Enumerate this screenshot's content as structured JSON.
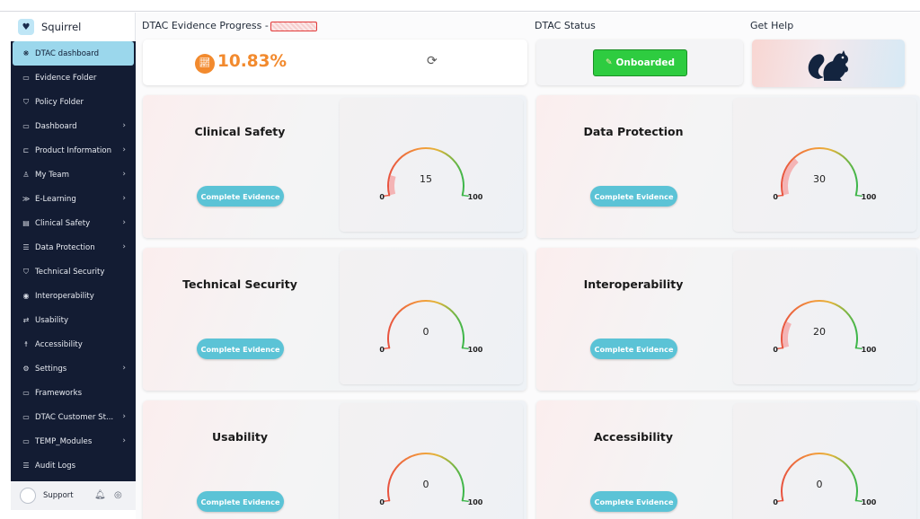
{
  "app": {
    "name": "Squirrel",
    "logo_icon": "heart-icon"
  },
  "sidebar": {
    "items": [
      {
        "label": "DTAC dashboard",
        "icon": "dashboard-icon",
        "active": true,
        "chevron": false
      },
      {
        "label": "Evidence Folder",
        "icon": "folder-icon",
        "active": false,
        "chevron": false
      },
      {
        "label": "Policy Folder",
        "icon": "shield-icon",
        "active": false,
        "chevron": false
      },
      {
        "label": "Dashboard",
        "icon": "monitor-icon",
        "active": false,
        "chevron": true
      },
      {
        "label": "Product Information",
        "icon": "cart-icon",
        "active": false,
        "chevron": true
      },
      {
        "label": "My Team",
        "icon": "team-icon",
        "active": false,
        "chevron": true
      },
      {
        "label": "E-Learning",
        "icon": "learning-icon",
        "active": false,
        "chevron": true
      },
      {
        "label": "Clinical Safety",
        "icon": "clipboard-icon",
        "active": false,
        "chevron": true
      },
      {
        "label": "Data Protection",
        "icon": "database-icon",
        "active": false,
        "chevron": true
      },
      {
        "label": "Technical Security",
        "icon": "shield-icon",
        "active": false,
        "chevron": false
      },
      {
        "label": "Interoperability",
        "icon": "globe-icon",
        "active": false,
        "chevron": false
      },
      {
        "label": "Usability",
        "icon": "loop-icon",
        "active": false,
        "chevron": false
      },
      {
        "label": "Accessibility",
        "icon": "person-icon",
        "active": false,
        "chevron": false
      },
      {
        "label": "Settings",
        "icon": "gear-icon",
        "active": false,
        "chevron": true
      },
      {
        "label": "Frameworks",
        "icon": "monitor-icon",
        "active": false,
        "chevron": false
      },
      {
        "label": "DTAC Customer St...",
        "icon": "monitor-icon",
        "active": false,
        "chevron": true
      },
      {
        "label": "TEMP_Modules",
        "icon": "monitor-icon",
        "active": false,
        "chevron": true
      },
      {
        "label": "Audit Logs",
        "icon": "database-icon",
        "active": false,
        "chevron": false
      }
    ],
    "support": {
      "label": "Support",
      "bell_icon": "bell-icon",
      "help_icon": "help-icon"
    }
  },
  "header": {
    "progress_title": "DTAC Evidence Progress -",
    "status_title": "DTAC Status",
    "help_title": "Get Help"
  },
  "progress": {
    "value": "10.83%",
    "icon": "chart-icon",
    "refresh_icon": "refresh-icon"
  },
  "status": {
    "label": "Onboarded",
    "icon": "pencil-icon",
    "color": "#2ecc40"
  },
  "colors": {
    "accent": "#5bc3d6",
    "progress": "#f28a2e",
    "sidebar": "#131c33",
    "active_nav": "#9bd7ec"
  },
  "evidence": [
    {
      "title": "Clinical Safety",
      "button": "Complete Evidence",
      "value": 15,
      "min_label": "0",
      "max_label": "100",
      "value_label": "15"
    },
    {
      "title": "Data Protection",
      "button": "Complete Evidence",
      "value": 30,
      "min_label": "0",
      "max_label": "100",
      "value_label": "30"
    },
    {
      "title": "Technical Security",
      "button": "Complete Evidence",
      "value": 0,
      "min_label": "0",
      "max_label": "100",
      "value_label": "0"
    },
    {
      "title": "Interoperability",
      "button": "Complete Evidence",
      "value": 20,
      "min_label": "0",
      "max_label": "100",
      "value_label": "20"
    },
    {
      "title": "Usability",
      "button": "Complete Evidence",
      "value": 0,
      "min_label": "0",
      "max_label": "100",
      "value_label": "0"
    },
    {
      "title": "Accessibility",
      "button": "Complete Evidence",
      "value": 0,
      "min_label": "0",
      "max_label": "100",
      "value_label": "0"
    }
  ]
}
